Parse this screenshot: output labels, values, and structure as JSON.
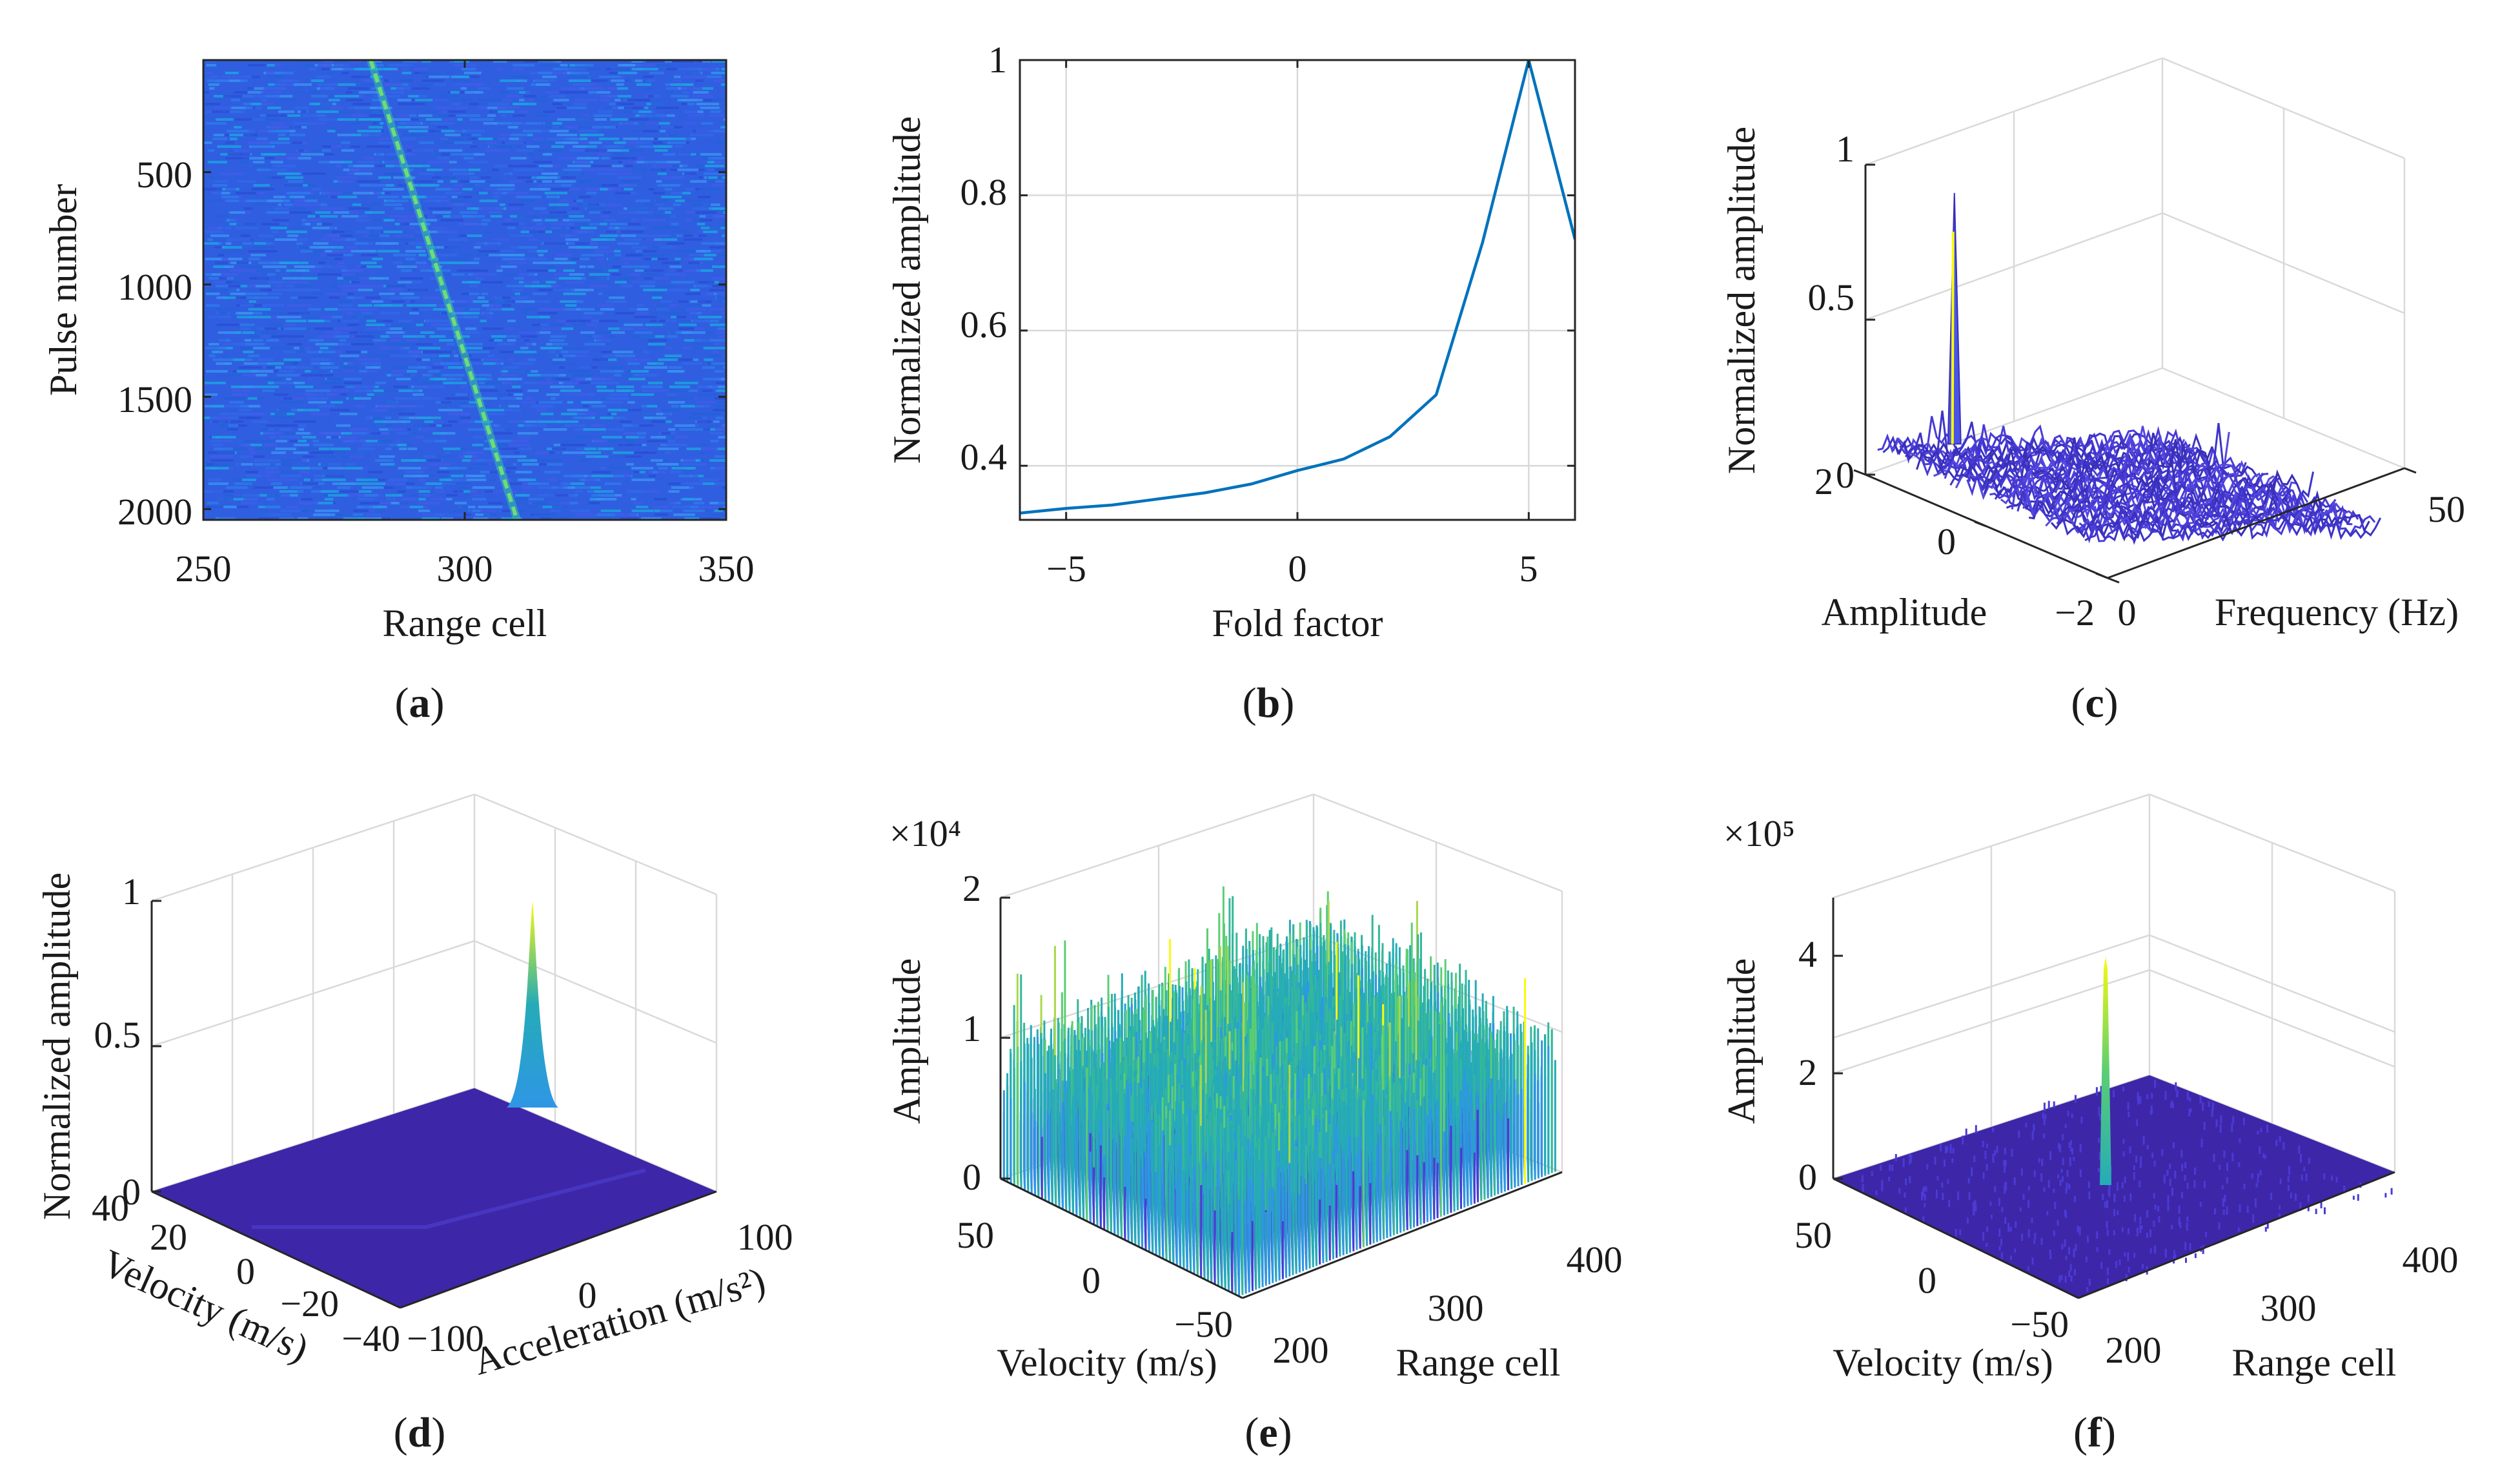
{
  "colors": {
    "line": "#0072BD",
    "parula_low": "#3E26A8",
    "parula_mid": "#2F96E5",
    "parula_teal": "#25ABB7",
    "parula_green": "#5BCE73",
    "parula_high": "#F9FB0E"
  },
  "chart_data": [
    {
      "id": "a",
      "type": "heatmap",
      "panel_label": "a",
      "xlabel": "Range cell",
      "ylabel": "Pulse number",
      "xlim": [
        250,
        350
      ],
      "ylim": [
        1,
        2048
      ],
      "y_reversed": true,
      "xticks": [
        "250",
        "300",
        "350"
      ],
      "yticks": [
        "500",
        "1000",
        "1500",
        "2000"
      ],
      "trace": {
        "start": [
          282,
          1
        ],
        "end": [
          310,
          2048
        ]
      },
      "grid": false
    },
    {
      "id": "b",
      "type": "line",
      "panel_label": "b",
      "xlabel": "Fold factor",
      "ylabel": "Normalized amplitude",
      "xlim": [
        -6,
        6
      ],
      "ylim": [
        0.32,
        1
      ],
      "xticks": [
        "−5",
        "0",
        "5"
      ],
      "yticks": [
        "0.4",
        "0.6",
        "0.8",
        "1"
      ],
      "grid": true,
      "series": [
        {
          "x": [
            -6,
            -5,
            -4,
            -3,
            -2,
            -1,
            0,
            1,
            2,
            3,
            4,
            5,
            6
          ],
          "values": [
            0.33,
            0.337,
            0.342,
            0.351,
            0.36,
            0.373,
            0.393,
            0.41,
            0.443,
            0.505,
            0.73,
            1.0,
            0.735
          ]
        }
      ]
    },
    {
      "id": "c",
      "type": "area",
      "panel_label": "c",
      "projection": "3d",
      "xlabel": "Frequency (Hz)",
      "ylabel": "Amplitude",
      "zlabel": "Normalized amplitude",
      "xticks": [
        "0",
        "50"
      ],
      "yticks": [
        "−2",
        "0",
        "2"
      ],
      "zticks": [
        "0",
        "0.5",
        "1"
      ],
      "zlim": [
        0,
        1
      ],
      "peak": 1.0,
      "floor_level": 0.12,
      "grid": true
    },
    {
      "id": "d",
      "type": "area",
      "panel_label": "d",
      "projection": "3d",
      "xlabel": "Acceleration (m/s²)",
      "ylabel": "Velocity (m/s)",
      "zlabel": "Normalized amplitude",
      "xticks": [
        "−100",
        "0",
        "100"
      ],
      "yticks": [
        "−40",
        "−20",
        "0",
        "20",
        "40"
      ],
      "zticks": [
        "0",
        "0.5",
        "1"
      ],
      "zlim": [
        0,
        1
      ],
      "peak": 1.0,
      "grid": true
    },
    {
      "id": "e",
      "type": "area",
      "panel_label": "e",
      "projection": "3d",
      "xlabel": "Range cell",
      "ylabel": "Velocity (m/s)",
      "zlabel": "Amplitude",
      "exponent": "×10⁴",
      "xticks": [
        "200",
        "300",
        "400"
      ],
      "yticks": [
        "−50",
        "0",
        "50"
      ],
      "zticks": [
        "0",
        "1",
        "2"
      ],
      "zlim": [
        0,
        2
      ],
      "grid": true
    },
    {
      "id": "f",
      "type": "area",
      "panel_label": "f",
      "projection": "3d",
      "xlabel": "Range cell",
      "ylabel": "Velocity (m/s)",
      "zlabel": "Amplitude",
      "exponent": "×10⁵",
      "xticks": [
        "200",
        "300",
        "400"
      ],
      "yticks": [
        "−50",
        "0",
        "50"
      ],
      "zticks": [
        "0",
        "2",
        "4"
      ],
      "zlim": [
        0,
        4.8
      ],
      "peak": 3.7,
      "grid": true
    }
  ]
}
